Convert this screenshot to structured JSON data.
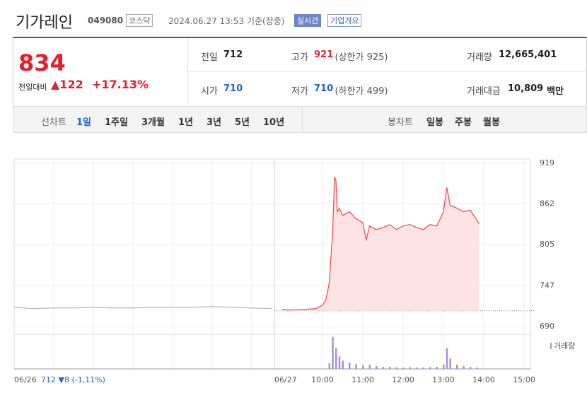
{
  "header": {
    "title": "기가레인",
    "code": "049080",
    "market": "코스닥",
    "time": "2024.06.27 13:53 기준(장중)",
    "realtime": "실시간",
    "company": "기업개요"
  },
  "quote": {
    "price": "834",
    "change_label": "전일대비",
    "change": "▲122",
    "change_pct": "+17.13%",
    "stats": [
      {
        "label": "전일",
        "value": "712"
      },
      {
        "label": "고가",
        "value": "921",
        "note": "(상한가 925)"
      },
      {
        "label": "거래량",
        "value": "12,665,401"
      },
      {
        "label": "시가",
        "value": "710"
      },
      {
        "label": "저가",
        "value": "710",
        "note": "(하한가 499)"
      },
      {
        "label": "거래대금",
        "value": "10,809",
        "unit": "백만"
      }
    ]
  },
  "tabs": {
    "line_label": "선차트",
    "line": [
      "1일",
      "1주일",
      "3개월",
      "1년",
      "3년",
      "5년",
      "10년"
    ],
    "candle_label": "봉차트",
    "candle": [
      "일봉",
      "주봉",
      "월봉"
    ]
  },
  "chart_data": {
    "type": "line",
    "ylim": [
      690,
      919
    ],
    "yticks": [
      690,
      747,
      805,
      862,
      919
    ],
    "reference_line": 712,
    "days": [
      {
        "label": "06/26",
        "summary": "712 ▼8 (-1,11%)",
        "color": "#b8b8b8",
        "x": [
          "09:00",
          "09:30",
          "10:00",
          "10:30",
          "11:00",
          "11:30",
          "12:00",
          "12:30",
          "13:00",
          "13:30",
          "14:00",
          "14:30",
          "15:00",
          "15:30"
        ],
        "values": [
          717,
          715,
          716,
          716,
          717,
          716,
          716,
          717,
          717,
          717,
          718,
          717,
          716,
          715
        ]
      },
      {
        "label": "06/27",
        "color": "#f0454b",
        "fill": "#fde3e4",
        "ticks": [
          "10:00",
          "11:00",
          "12:00",
          "13:00",
          "14:00",
          "15:00"
        ],
        "x": [
          "09:00",
          "09:10",
          "09:30",
          "09:50",
          "10:00",
          "10:05",
          "10:10",
          "10:15",
          "10:18",
          "10:20",
          "10:22",
          "10:25",
          "10:30",
          "10:40",
          "10:50",
          "11:00",
          "11:05",
          "11:10",
          "11:20",
          "11:30",
          "11:40",
          "11:50",
          "12:00",
          "12:10",
          "12:20",
          "12:30",
          "12:40",
          "12:50",
          "13:00",
          "13:05",
          "13:10",
          "13:20",
          "13:30",
          "13:40",
          "13:50",
          "13:53"
        ],
        "values": [
          714,
          713,
          714,
          715,
          720,
          727,
          751,
          821,
          900,
          895,
          851,
          856,
          846,
          851,
          841,
          836,
          811,
          831,
          826,
          829,
          833,
          826,
          831,
          833,
          829,
          826,
          833,
          831,
          851,
          885,
          860,
          856,
          851,
          853,
          839,
          834
        ]
      }
    ],
    "volume": {
      "label": "거래량",
      "color": "#a98fd8",
      "x": [
        "10:10",
        "10:15",
        "10:20",
        "10:25",
        "10:30",
        "10:40",
        "10:50",
        "11:00",
        "11:10",
        "11:20",
        "11:30",
        "11:40",
        "11:50",
        "12:00",
        "12:10",
        "12:20",
        "12:30",
        "12:40",
        "12:50",
        "13:00",
        "13:05",
        "13:10",
        "13:20",
        "13:30",
        "13:40",
        "13:50"
      ],
      "values": [
        80000,
        460000,
        300000,
        180000,
        120000,
        90000,
        70000,
        50000,
        60000,
        40000,
        30000,
        30000,
        25000,
        20000,
        25000,
        20000,
        20000,
        25000,
        30000,
        60000,
        300000,
        150000,
        60000,
        40000,
        30000,
        20000
      ]
    }
  }
}
